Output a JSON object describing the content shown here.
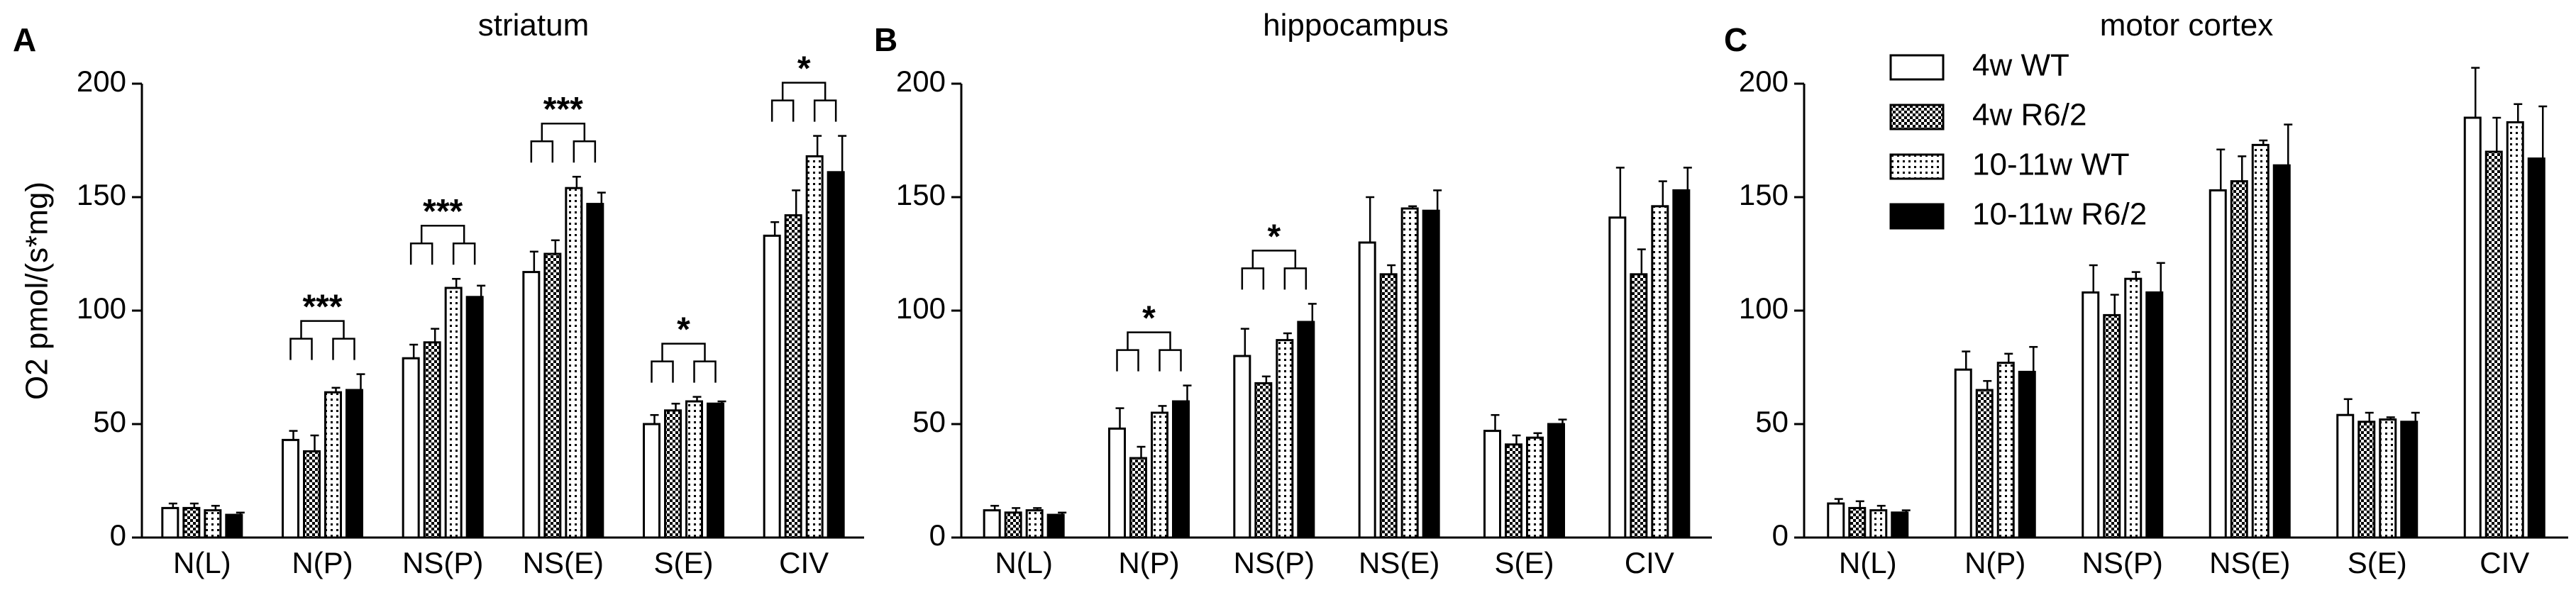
{
  "ylabel": "O2 pmol/(s*mg)",
  "legend": [
    {
      "label": "4w WT",
      "pattern": "open"
    },
    {
      "label": "4w R6/2",
      "pattern": "checker"
    },
    {
      "label": "10-11w WT",
      "pattern": "dotted"
    },
    {
      "label": "10-11w R6/2",
      "pattern": "solid"
    }
  ],
  "chart_data": [
    {
      "type": "bar",
      "panel": "A",
      "title": "striatum",
      "categories": [
        "N(L)",
        "N(P)",
        "NS(P)",
        "NS(E)",
        "S(E)",
        "CIV"
      ],
      "ylim": [
        0,
        200
      ],
      "yticks": [
        0,
        50,
        100,
        150,
        200
      ],
      "series": [
        {
          "name": "4w WT",
          "values": [
            13,
            43,
            79,
            117,
            50,
            133
          ],
          "errors": [
            2,
            4,
            6,
            9,
            4,
            6
          ]
        },
        {
          "name": "4w R6/2",
          "values": [
            13,
            38,
            86,
            125,
            56,
            142
          ],
          "errors": [
            2,
            7,
            6,
            6,
            3,
            11
          ]
        },
        {
          "name": "10-11w WT",
          "values": [
            12,
            64,
            110,
            154,
            60,
            168
          ],
          "errors": [
            2,
            2,
            4,
            5,
            2,
            9
          ]
        },
        {
          "name": "10-11w R6/2",
          "values": [
            10,
            65,
            106,
            147,
            59,
            161
          ],
          "errors": [
            1,
            7,
            5,
            5,
            1,
            16
          ]
        }
      ],
      "significance": [
        {
          "category": "N(P)",
          "label": "***"
        },
        {
          "category": "NS(P)",
          "label": "***"
        },
        {
          "category": "NS(E)",
          "label": "***"
        },
        {
          "category": "S(E)",
          "label": "*"
        },
        {
          "category": "CIV",
          "label": "*"
        }
      ]
    },
    {
      "type": "bar",
      "panel": "B",
      "title": "hippocampus",
      "categories": [
        "N(L)",
        "N(P)",
        "NS(P)",
        "NS(E)",
        "S(E)",
        "CIV"
      ],
      "ylim": [
        0,
        200
      ],
      "yticks": [
        0,
        50,
        100,
        150,
        200
      ],
      "series": [
        {
          "name": "4w WT",
          "values": [
            12,
            48,
            80,
            130,
            47,
            141
          ],
          "errors": [
            2,
            9,
            12,
            20,
            7,
            22
          ]
        },
        {
          "name": "4w R6/2",
          "values": [
            11,
            35,
            68,
            116,
            41,
            116
          ],
          "errors": [
            2,
            5,
            3,
            4,
            4,
            11
          ]
        },
        {
          "name": "10-11w WT",
          "values": [
            12,
            55,
            87,
            145,
            44,
            146
          ],
          "errors": [
            1,
            3,
            3,
            1,
            2,
            11
          ]
        },
        {
          "name": "10-11w R6/2",
          "values": [
            10,
            60,
            95,
            144,
            50,
            153
          ],
          "errors": [
            1,
            7,
            8,
            9,
            2,
            10
          ]
        }
      ],
      "significance": [
        {
          "category": "N(P)",
          "label": "*"
        },
        {
          "category": "NS(P)",
          "label": "*"
        }
      ]
    },
    {
      "type": "bar",
      "panel": "C",
      "title": "motor cortex",
      "categories": [
        "N(L)",
        "N(P)",
        "NS(P)",
        "NS(E)",
        "S(E)",
        "CIV"
      ],
      "ylim": [
        0,
        200
      ],
      "yticks": [
        0,
        50,
        100,
        150,
        200
      ],
      "series": [
        {
          "name": "4w WT",
          "values": [
            15,
            74,
            108,
            153,
            54,
            185
          ],
          "errors": [
            2,
            8,
            12,
            18,
            7,
            22
          ]
        },
        {
          "name": "4w R6/2",
          "values": [
            13,
            65,
            98,
            157,
            51,
            170
          ],
          "errors": [
            3,
            4,
            9,
            11,
            4,
            15
          ]
        },
        {
          "name": "10-11w WT",
          "values": [
            12,
            77,
            114,
            173,
            52,
            183
          ],
          "errors": [
            2,
            4,
            3,
            2,
            1,
            8
          ]
        },
        {
          "name": "10-11w R6/2",
          "values": [
            11,
            73,
            108,
            164,
            51,
            167
          ],
          "errors": [
            1,
            11,
            13,
            18,
            4,
            23
          ]
        }
      ],
      "significance": []
    }
  ]
}
